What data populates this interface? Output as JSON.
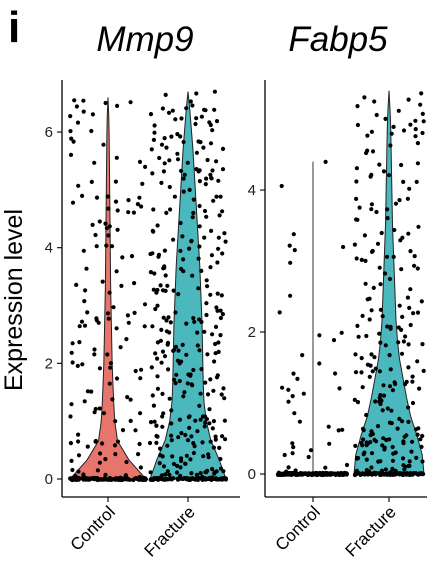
{
  "panel_letter": "i",
  "chart_data": [
    {
      "type": "violin",
      "title": "Mmp9",
      "ylabel": "Expression level",
      "xlabel": "",
      "categories": [
        "Control",
        "Fracture"
      ],
      "ylim": [
        0,
        6.9
      ],
      "y_ticks": [
        0,
        2,
        4,
        6
      ],
      "grid": false,
      "series": [
        {
          "category": "Control",
          "color": "#E8756C",
          "max": 6.6,
          "density": [
            1.0,
            0.55,
            0.25,
            0.18,
            0.15,
            0.13,
            0.11,
            0.1,
            0.09,
            0.08,
            0.07,
            0.065,
            0.06,
            0.055,
            0.05,
            0.045,
            0.04,
            0.035,
            0.03,
            0.02,
            0.0
          ],
          "approx_points": 260,
          "fraction_zero": 0.45
        },
        {
          "category": "Fracture",
          "color": "#4BB8BD",
          "max": 6.7,
          "density": [
            1.0,
            0.82,
            0.6,
            0.48,
            0.42,
            0.4,
            0.39,
            0.38,
            0.37,
            0.35,
            0.33,
            0.31,
            0.28,
            0.25,
            0.22,
            0.19,
            0.16,
            0.13,
            0.09,
            0.05,
            0.0
          ],
          "approx_points": 420,
          "fraction_zero": 0.25
        }
      ]
    },
    {
      "type": "violin",
      "title": "Fabp5",
      "ylabel": "",
      "xlabel": "",
      "categories": [
        "Control",
        "Fracture"
      ],
      "ylim": [
        0,
        5.55
      ],
      "y_ticks": [
        0,
        2,
        4
      ],
      "grid": false,
      "series": [
        {
          "category": "Control",
          "color": "#E8756C",
          "max": 4.4,
          "density": [
            1.0,
            0.0
          ],
          "approx_points": 210,
          "fraction_zero": 0.8
        },
        {
          "category": "Fracture",
          "color": "#4BB8BD",
          "max": 5.4,
          "density": [
            1.0,
            0.95,
            0.8,
            0.62,
            0.5,
            0.4,
            0.3,
            0.24,
            0.2,
            0.18,
            0.16,
            0.14,
            0.12,
            0.1,
            0.09,
            0.08,
            0.07,
            0.06,
            0.05,
            0.03,
            0.0
          ],
          "approx_points": 330,
          "fraction_zero": 0.3
        }
      ]
    }
  ]
}
